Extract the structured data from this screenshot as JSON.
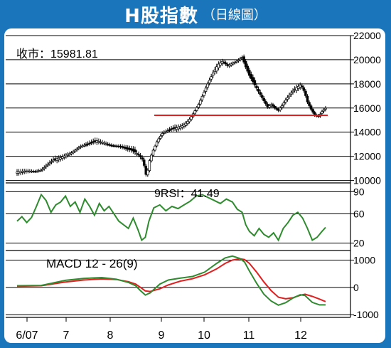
{
  "header": {
    "title": "H股指數",
    "subtitle": "（日線圖）"
  },
  "colors": {
    "frame": "#1b75bb",
    "candle": "#000000",
    "support_line": "#e02020",
    "rsi_line": "#2e8b2e",
    "macd_line": "#2e8b2e",
    "signal_line": "#e02020"
  },
  "chart_data": [
    {
      "type": "candlestick",
      "label": "收市：15981.81",
      "y_ticks": [
        10000,
        12000,
        14000,
        16000,
        18000,
        20000,
        22000
      ],
      "ylim": [
        9800,
        22000
      ],
      "x_tick_labels": [
        "6/07",
        "7",
        "8",
        "9",
        "10",
        "11",
        "12"
      ],
      "support_level": 15400,
      "close_path": [
        [
          0,
          10700
        ],
        [
          8,
          10800
        ],
        [
          15,
          10750
        ],
        [
          20,
          10850
        ],
        [
          25,
          11300
        ],
        [
          30,
          11700
        ],
        [
          36,
          11900
        ],
        [
          45,
          12300
        ],
        [
          52,
          12800
        ],
        [
          58,
          13000
        ],
        [
          66,
          13300
        ],
        [
          72,
          13100
        ],
        [
          78,
          12900
        ],
        [
          85,
          12800
        ],
        [
          91,
          12600
        ],
        [
          95,
          12500
        ],
        [
          100,
          12200
        ],
        [
          104,
          11700
        ],
        [
          106,
          10800
        ],
        [
          107,
          10200
        ],
        [
          109,
          11500
        ],
        [
          112,
          12400
        ],
        [
          116,
          13300
        ],
        [
          120,
          13900
        ],
        [
          126,
          14200
        ],
        [
          133,
          14400
        ],
        [
          138,
          14600
        ],
        [
          142,
          15000
        ],
        [
          146,
          15600
        ],
        [
          150,
          16300
        ],
        [
          154,
          17200
        ],
        [
          158,
          18100
        ],
        [
          162,
          18900
        ],
        [
          166,
          19600
        ],
        [
          170,
          19900
        ],
        [
          174,
          19500
        ],
        [
          178,
          19700
        ],
        [
          182,
          19900
        ],
        [
          186,
          20200
        ],
        [
          189,
          19400
        ],
        [
          192,
          18700
        ],
        [
          196,
          18000
        ],
        [
          200,
          17300
        ],
        [
          204,
          16600
        ],
        [
          207,
          16100
        ],
        [
          210,
          16300
        ],
        [
          213,
          16000
        ],
        [
          216,
          15800
        ],
        [
          219,
          16200
        ],
        [
          223,
          16800
        ],
        [
          227,
          17300
        ],
        [
          231,
          17700
        ],
        [
          234,
          17900
        ],
        [
          236,
          17700
        ],
        [
          238,
          17200
        ],
        [
          240,
          16500
        ],
        [
          243,
          15900
        ],
        [
          246,
          15400
        ],
        [
          249,
          15300
        ],
        [
          252,
          15700
        ],
        [
          255,
          15980
        ]
      ]
    },
    {
      "type": "line",
      "label": "9RSI：41.49",
      "y_ticks": [
        20,
        60,
        90
      ],
      "ylim": [
        10,
        100
      ],
      "series": [
        {
          "name": "9RSI",
          "points": [
            [
              0,
              50
            ],
            [
              4,
              56
            ],
            [
              8,
              48
            ],
            [
              12,
              55
            ],
            [
              16,
              70
            ],
            [
              20,
              86
            ],
            [
              24,
              78
            ],
            [
              28,
              62
            ],
            [
              32,
              72
            ],
            [
              36,
              76
            ],
            [
              40,
              84
            ],
            [
              44,
              70
            ],
            [
              48,
              76
            ],
            [
              52,
              62
            ],
            [
              56,
              80
            ],
            [
              60,
              70
            ],
            [
              64,
              58
            ],
            [
              68,
              74
            ],
            [
              72,
              64
            ],
            [
              76,
              70
            ],
            [
              80,
              60
            ],
            [
              84,
              50
            ],
            [
              88,
              45
            ],
            [
              92,
              40
            ],
            [
              96,
              54
            ],
            [
              100,
              38
            ],
            [
              103,
              24
            ],
            [
              106,
              28
            ],
            [
              109,
              50
            ],
            [
              113,
              68
            ],
            [
              118,
              72
            ],
            [
              123,
              64
            ],
            [
              128,
              70
            ],
            [
              133,
              67
            ],
            [
              138,
              72
            ],
            [
              143,
              77
            ],
            [
              148,
              84
            ],
            [
              153,
              86
            ],
            [
              158,
              82
            ],
            [
              163,
              78
            ],
            [
              168,
              74
            ],
            [
              173,
              80
            ],
            [
              178,
              76
            ],
            [
              182,
              66
            ],
            [
              186,
              62
            ],
            [
              189,
              45
            ],
            [
              192,
              36
            ],
            [
              196,
              30
            ],
            [
              200,
              40
            ],
            [
              204,
              32
            ],
            [
              208,
              28
            ],
            [
              212,
              34
            ],
            [
              216,
              24
            ],
            [
              220,
              40
            ],
            [
              224,
              48
            ],
            [
              228,
              58
            ],
            [
              232,
              62
            ],
            [
              236,
              54
            ],
            [
              240,
              40
            ],
            [
              244,
              24
            ],
            [
              248,
              28
            ],
            [
              252,
              36
            ],
            [
              255,
              41.49
            ]
          ]
        }
      ]
    },
    {
      "type": "line",
      "label": "MACD 12 - 26(9)",
      "y_ticks": [
        -1000,
        0,
        1000
      ],
      "ylim": [
        -1100,
        1300
      ],
      "series": [
        {
          "name": "MACD",
          "points": [
            [
              0,
              60
            ],
            [
              20,
              70
            ],
            [
              40,
              260
            ],
            [
              55,
              330
            ],
            [
              70,
              360
            ],
            [
              82,
              300
            ],
            [
              92,
              180
            ],
            [
              98,
              60
            ],
            [
              102,
              -120
            ],
            [
              106,
              -280
            ],
            [
              110,
              -200
            ],
            [
              118,
              120
            ],
            [
              125,
              270
            ],
            [
              135,
              340
            ],
            [
              145,
              400
            ],
            [
              155,
              560
            ],
            [
              165,
              880
            ],
            [
              172,
              1080
            ],
            [
              178,
              1150
            ],
            [
              184,
              1060
            ],
            [
              188,
              930
            ],
            [
              192,
              600
            ],
            [
              198,
              150
            ],
            [
              204,
              -250
            ],
            [
              210,
              -500
            ],
            [
              216,
              -650
            ],
            [
              222,
              -560
            ],
            [
              228,
              -390
            ],
            [
              234,
              -270
            ],
            [
              238,
              -300
            ],
            [
              244,
              -550
            ],
            [
              250,
              -640
            ],
            [
              255,
              -640
            ]
          ]
        },
        {
          "name": "Signal",
          "points": [
            [
              0,
              40
            ],
            [
              20,
              60
            ],
            [
              40,
              200
            ],
            [
              55,
              270
            ],
            [
              70,
              310
            ],
            [
              82,
              290
            ],
            [
              92,
              210
            ],
            [
              98,
              120
            ],
            [
              102,
              0
            ],
            [
              106,
              -130
            ],
            [
              110,
              -150
            ],
            [
              118,
              -50
            ],
            [
              125,
              90
            ],
            [
              135,
              230
            ],
            [
              145,
              320
            ],
            [
              155,
              460
            ],
            [
              165,
              680
            ],
            [
              172,
              880
            ],
            [
              178,
              1000
            ],
            [
              184,
              1050
            ],
            [
              188,
              1020
            ],
            [
              192,
              880
            ],
            [
              198,
              560
            ],
            [
              204,
              200
            ],
            [
              210,
              -120
            ],
            [
              216,
              -360
            ],
            [
              222,
              -420
            ],
            [
              228,
              -380
            ],
            [
              234,
              -290
            ],
            [
              238,
              -250
            ],
            [
              244,
              -330
            ],
            [
              250,
              -430
            ],
            [
              255,
              -520
            ]
          ]
        }
      ]
    }
  ]
}
